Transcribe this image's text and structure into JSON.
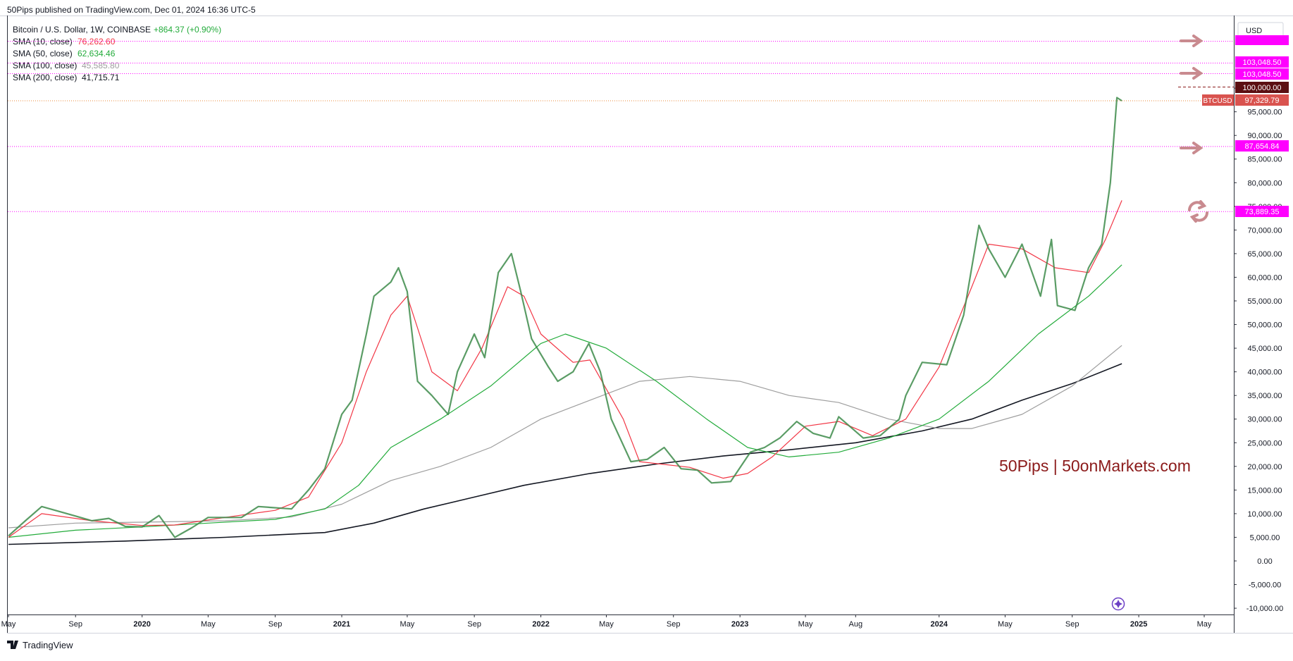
{
  "header": {
    "published": "50Pips published on TradingView.com, Dec 01, 2024 16:36 UTC-5"
  },
  "legend": {
    "symbol": "Bitcoin / U.S. Dollar, 1W, COINBASE",
    "change": "+864.37 (+0.90%)",
    "sma": [
      {
        "label": "SMA (10, close)",
        "value": "76,262.60",
        "color": "#f23645"
      },
      {
        "label": "SMA (50, close)",
        "value": "62,634.46",
        "color": "#22ab3a"
      },
      {
        "label": "SMA (100, close)",
        "value": "45,585.80",
        "color": "#9e9e9e"
      },
      {
        "label": "SMA (200, close)",
        "value": "41,715.71",
        "color": "#131722"
      }
    ]
  },
  "currency": "USD",
  "price_labels": {
    "top_partial": "",
    "level_103048_a": "103,048.50",
    "level_103048_b": "103,048.50",
    "level_100000": "100,000.00",
    "btcusd_tag": "BTCUSD",
    "btcusd_value": "97,329.79",
    "level_87654": "87,654.84",
    "level_73889": "73,889.35"
  },
  "watermark": "50Pips | 50onMarkets.com",
  "footer_logo": "TradingView",
  "colors": {
    "up": "#22ab3a",
    "down": "#8b1a1a",
    "magenta": "#ff00ff",
    "sma10": "#f23645",
    "sma50": "#22ab3a",
    "sma100": "#9e9e9e",
    "sma200": "#131722",
    "watermark": "#8b1a1a",
    "btc_tag": "#d9534f"
  },
  "chart_data": {
    "type": "line",
    "title": "Bitcoin / U.S. Dollar, 1W, COINBASE",
    "y_ticks": [
      100000,
      95000,
      90000,
      85000,
      80000,
      75000,
      70000,
      65000,
      60000,
      55000,
      50000,
      45000,
      40000,
      35000,
      30000,
      25000,
      20000,
      15000,
      10000,
      5000,
      0,
      -5000,
      -10000
    ],
    "y_tick_labels": [
      "100,000.00",
      "95,000.00",
      "90,000.00",
      "85,000.00",
      "80,000.00",
      "75,000.00",
      "70,000.00",
      "65,000.00",
      "60,000.00",
      "55,000.00",
      "50,000.00",
      "45,000.00",
      "40,000.00",
      "35,000.00",
      "30,000.00",
      "25,000.00",
      "20,000.00",
      "15,000.00",
      "10,000.00",
      "5,000.00",
      "0.00",
      "-5,000.00",
      "-10,000.00"
    ],
    "ylim": [
      -10000,
      110000
    ],
    "x_ticks": [
      "May",
      "Sep",
      "2020",
      "May",
      "Sep",
      "2021",
      "May",
      "Sep",
      "2022",
      "May",
      "Sep",
      "2023",
      "May",
      "Aug",
      "2024",
      "May",
      "Sep",
      "2025",
      "May"
    ],
    "x_tick_dates": [
      "2019-05-01",
      "2019-09-01",
      "2020-01-01",
      "2020-05-01",
      "2020-09-01",
      "2021-01-01",
      "2021-05-01",
      "2021-09-01",
      "2022-01-01",
      "2022-05-01",
      "2022-09-01",
      "2023-01-01",
      "2023-05-01",
      "2023-08-01",
      "2024-01-01",
      "2024-05-01",
      "2024-09-01",
      "2025-01-01",
      "2025-05-01"
    ],
    "horizontal_levels": [
      103048.5,
      100000,
      97329.79,
      87654.84,
      73889.35
    ],
    "series": [
      {
        "name": "SMA (10, close)",
        "color": "#f23645",
        "points": [
          [
            "2019-05-01",
            5000
          ],
          [
            "2019-07-01",
            10000
          ],
          [
            "2019-10-01",
            8500
          ],
          [
            "2020-01-01",
            7500
          ],
          [
            "2020-03-01",
            7600
          ],
          [
            "2020-06-01",
            9200
          ],
          [
            "2020-09-01",
            10700
          ],
          [
            "2020-11-01",
            13500
          ],
          [
            "2021-01-01",
            25000
          ],
          [
            "2021-02-15",
            40000
          ],
          [
            "2021-04-01",
            52000
          ],
          [
            "2021-05-01",
            56000
          ],
          [
            "2021-06-15",
            40000
          ],
          [
            "2021-08-01",
            36000
          ],
          [
            "2021-09-15",
            45000
          ],
          [
            "2021-11-01",
            58000
          ],
          [
            "2021-12-01",
            56000
          ],
          [
            "2022-01-01",
            48000
          ],
          [
            "2022-03-01",
            42000
          ],
          [
            "2022-04-01",
            42500
          ],
          [
            "2022-06-01",
            30000
          ],
          [
            "2022-07-01",
            21000
          ],
          [
            "2022-10-01",
            19800
          ],
          [
            "2022-12-01",
            17500
          ],
          [
            "2023-01-15",
            18500
          ],
          [
            "2023-03-01",
            22000
          ],
          [
            "2023-05-01",
            28500
          ],
          [
            "2023-07-01",
            29500
          ],
          [
            "2023-09-01",
            26500
          ],
          [
            "2023-11-01",
            30000
          ],
          [
            "2024-01-01",
            41000
          ],
          [
            "2024-03-01",
            58000
          ],
          [
            "2024-04-01",
            67000
          ],
          [
            "2024-06-01",
            66000
          ],
          [
            "2024-08-01",
            62000
          ],
          [
            "2024-10-01",
            61000
          ],
          [
            "2024-11-01",
            68000
          ],
          [
            "2024-12-01",
            76262
          ]
        ]
      },
      {
        "name": "SMA (50, close)",
        "color": "#22ab3a",
        "points": [
          [
            "2019-05-01",
            5000
          ],
          [
            "2019-09-01",
            6500
          ],
          [
            "2020-01-01",
            7200
          ],
          [
            "2020-05-01",
            8000
          ],
          [
            "2020-09-01",
            8800
          ],
          [
            "2020-12-01",
            11000
          ],
          [
            "2021-02-01",
            16000
          ],
          [
            "2021-04-01",
            24000
          ],
          [
            "2021-07-01",
            30000
          ],
          [
            "2021-10-01",
            37000
          ],
          [
            "2022-01-01",
            46000
          ],
          [
            "2022-02-15",
            48000
          ],
          [
            "2022-05-01",
            45000
          ],
          [
            "2022-08-01",
            38000
          ],
          [
            "2022-11-01",
            30000
          ],
          [
            "2023-01-15",
            24000
          ],
          [
            "2023-04-01",
            22000
          ],
          [
            "2023-07-01",
            23000
          ],
          [
            "2023-10-01",
            26000
          ],
          [
            "2024-01-01",
            30000
          ],
          [
            "2024-04-01",
            38000
          ],
          [
            "2024-07-01",
            48000
          ],
          [
            "2024-10-01",
            56000
          ],
          [
            "2024-12-01",
            62634
          ]
        ]
      },
      {
        "name": "SMA (100, close)",
        "color": "#9e9e9e",
        "points": [
          [
            "2019-05-01",
            7000
          ],
          [
            "2019-09-01",
            8000
          ],
          [
            "2020-01-01",
            8200
          ],
          [
            "2020-06-01",
            8500
          ],
          [
            "2020-10-01",
            9300
          ],
          [
            "2021-01-01",
            12000
          ],
          [
            "2021-04-01",
            17000
          ],
          [
            "2021-07-01",
            20000
          ],
          [
            "2021-10-01",
            24000
          ],
          [
            "2022-01-01",
            30000
          ],
          [
            "2022-04-01",
            34000
          ],
          [
            "2022-07-01",
            38000
          ],
          [
            "2022-10-01",
            39000
          ],
          [
            "2023-01-01",
            38000
          ],
          [
            "2023-04-01",
            35000
          ],
          [
            "2023-07-01",
            33500
          ],
          [
            "2023-10-01",
            30000
          ],
          [
            "2024-01-01",
            28000
          ],
          [
            "2024-03-01",
            28000
          ],
          [
            "2024-06-01",
            31000
          ],
          [
            "2024-09-01",
            37000
          ],
          [
            "2024-12-01",
            45585
          ]
        ]
      },
      {
        "name": "SMA (200, close)",
        "color": "#131722",
        "points": [
          [
            "2019-05-01",
            3500
          ],
          [
            "2019-12-01",
            4200
          ],
          [
            "2020-06-01",
            5000
          ],
          [
            "2020-12-01",
            6000
          ],
          [
            "2021-03-01",
            8000
          ],
          [
            "2021-06-01",
            11000
          ],
          [
            "2021-09-01",
            13500
          ],
          [
            "2021-12-01",
            16000
          ],
          [
            "2022-04-01",
            18500
          ],
          [
            "2022-08-01",
            20500
          ],
          [
            "2022-12-01",
            22200
          ],
          [
            "2023-04-01",
            23500
          ],
          [
            "2023-08-01",
            25000
          ],
          [
            "2023-12-01",
            27500
          ],
          [
            "2024-03-01",
            30000
          ],
          [
            "2024-06-01",
            34000
          ],
          [
            "2024-09-01",
            37500
          ],
          [
            "2024-12-01",
            41715
          ]
        ]
      },
      {
        "name": "",
        "color": "#22ab3a",
        "kind": "price",
        "points": [
          [
            "2019-05-01",
            5300
          ],
          [
            "2019-06-01",
            8500
          ],
          [
            "2019-07-01",
            11500
          ],
          [
            "2019-08-01",
            10500
          ],
          [
            "2019-09-01",
            9500
          ],
          [
            "2019-10-01",
            8500
          ],
          [
            "2019-11-01",
            9000
          ],
          [
            "2019-12-01",
            7300
          ],
          [
            "2020-01-01",
            7200
          ],
          [
            "2020-02-01",
            9600
          ],
          [
            "2020-03-01",
            5000
          ],
          [
            "2020-04-01",
            7000
          ],
          [
            "2020-05-01",
            9200
          ],
          [
            "2020-07-01",
            9200
          ],
          [
            "2020-08-01",
            11500
          ],
          [
            "2020-10-01",
            11000
          ],
          [
            "2020-11-01",
            15000
          ],
          [
            "2020-12-01",
            19500
          ],
          [
            "2021-01-01",
            31000
          ],
          [
            "2021-01-20",
            34000
          ],
          [
            "2021-02-15",
            48000
          ],
          [
            "2021-03-01",
            56000
          ],
          [
            "2021-04-01",
            59000
          ],
          [
            "2021-04-15",
            62000
          ],
          [
            "2021-05-01",
            57000
          ],
          [
            "2021-05-20",
            38000
          ],
          [
            "2021-06-15",
            35000
          ],
          [
            "2021-07-15",
            31000
          ],
          [
            "2021-08-01",
            40000
          ],
          [
            "2021-09-01",
            48000
          ],
          [
            "2021-09-20",
            43000
          ],
          [
            "2021-10-15",
            61000
          ],
          [
            "2021-11-08",
            65000
          ],
          [
            "2021-11-25",
            57000
          ],
          [
            "2021-12-15",
            47000
          ],
          [
            "2022-01-15",
            41000
          ],
          [
            "2022-02-01",
            38000
          ],
          [
            "2022-03-01",
            40000
          ],
          [
            "2022-03-30",
            46000
          ],
          [
            "2022-04-20",
            40000
          ],
          [
            "2022-05-10",
            30000
          ],
          [
            "2022-06-15",
            21000
          ],
          [
            "2022-07-15",
            21500
          ],
          [
            "2022-08-15",
            24000
          ],
          [
            "2022-09-15",
            19500
          ],
          [
            "2022-10-15",
            19200
          ],
          [
            "2022-11-10",
            16500
          ],
          [
            "2022-12-15",
            16800
          ],
          [
            "2023-01-20",
            23000
          ],
          [
            "2023-02-15",
            24000
          ],
          [
            "2023-03-15",
            26000
          ],
          [
            "2023-04-15",
            29500
          ],
          [
            "2023-05-15",
            27000
          ],
          [
            "2023-06-15",
            26000
          ],
          [
            "2023-07-01",
            30500
          ],
          [
            "2023-08-15",
            26000
          ],
          [
            "2023-09-15",
            26500
          ],
          [
            "2023-10-20",
            30000
          ],
          [
            "2023-11-01",
            35000
          ],
          [
            "2023-12-01",
            42000
          ],
          [
            "2024-01-15",
            41500
          ],
          [
            "2024-02-15",
            52000
          ],
          [
            "2024-03-14",
            71000
          ],
          [
            "2024-04-01",
            66000
          ],
          [
            "2024-05-01",
            60000
          ],
          [
            "2024-06-01",
            67000
          ],
          [
            "2024-07-05",
            56000
          ],
          [
            "2024-07-25",
            68000
          ],
          [
            "2024-08-05",
            54000
          ],
          [
            "2024-09-06",
            53000
          ],
          [
            "2024-10-01",
            62000
          ],
          [
            "2024-10-25",
            67000
          ],
          [
            "2024-11-10",
            80000
          ],
          [
            "2024-11-22",
            98000
          ],
          [
            "2024-12-01",
            97329
          ]
        ]
      }
    ],
    "annotations": [
      "50Pips | 50onMarkets.com"
    ]
  }
}
